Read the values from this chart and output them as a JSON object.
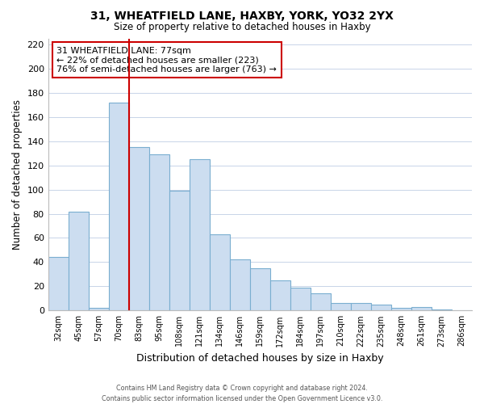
{
  "title": "31, WHEATFIELD LANE, HAXBY, YORK, YO32 2YX",
  "subtitle": "Size of property relative to detached houses in Haxby",
  "xlabel": "Distribution of detached houses by size in Haxby",
  "ylabel": "Number of detached properties",
  "categories": [
    "32sqm",
    "45sqm",
    "57sqm",
    "70sqm",
    "83sqm",
    "95sqm",
    "108sqm",
    "121sqm",
    "134sqm",
    "146sqm",
    "159sqm",
    "172sqm",
    "184sqm",
    "197sqm",
    "210sqm",
    "222sqm",
    "235sqm",
    "248sqm",
    "261sqm",
    "273sqm",
    "286sqm"
  ],
  "values": [
    44,
    82,
    2,
    172,
    135,
    129,
    99,
    125,
    63,
    42,
    35,
    25,
    19,
    14,
    6,
    6,
    5,
    2,
    3,
    1,
    0
  ],
  "bar_color": "#ccddf0",
  "bar_edge_color": "#7aaed0",
  "vline_color": "#cc0000",
  "vline_x": 3.5,
  "annotation_line1": "31 WHEATFIELD LANE: 77sqm",
  "annotation_line2": "← 22% of detached houses are smaller (223)",
  "annotation_line3": "76% of semi-detached houses are larger (763) →",
  "annotation_box_color": "#ffffff",
  "annotation_box_edge": "#cc0000",
  "ylim": [
    0,
    225
  ],
  "yticks": [
    0,
    20,
    40,
    60,
    80,
    100,
    120,
    140,
    160,
    180,
    200,
    220
  ],
  "footer": "Contains HM Land Registry data © Crown copyright and database right 2024.\nContains public sector information licensed under the Open Government Licence v3.0.",
  "background_color": "#ffffff",
  "grid_color": "#c8d4e8"
}
